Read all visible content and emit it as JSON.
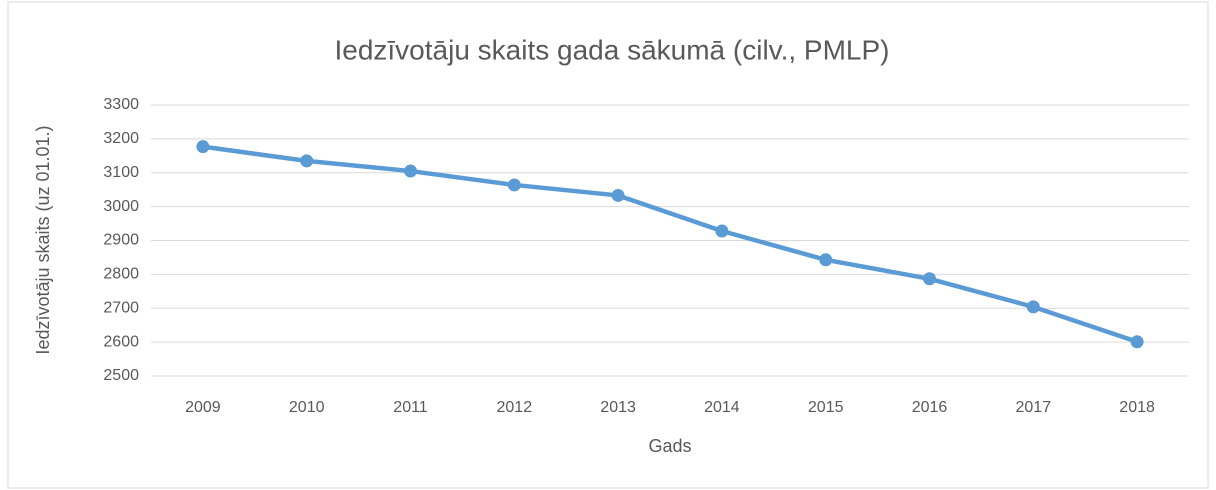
{
  "chart_data": {
    "type": "line",
    "title": "Iedzīvotāju skaits gada sākumā (cilv., PMLP)",
    "x_label": "Gads",
    "y_label": "Iedzīvotāju skaits (uz 01.01.)",
    "categories": [
      "2009",
      "2010",
      "2011",
      "2012",
      "2013",
      "2014",
      "2015",
      "2016",
      "2017",
      "2018"
    ],
    "series": [
      {
        "name": "Iedzīvotāju skaits",
        "color": "#5b9bd5",
        "values": [
          3177,
          3135,
          3105,
          3064,
          3033,
          2928,
          2843,
          2787,
          2704,
          2601
        ]
      }
    ],
    "ylim": [
      2500,
      3300
    ],
    "yticks": [
      2500,
      2600,
      2700,
      2800,
      2900,
      3000,
      3100,
      3200,
      3300
    ],
    "grid": true
  }
}
